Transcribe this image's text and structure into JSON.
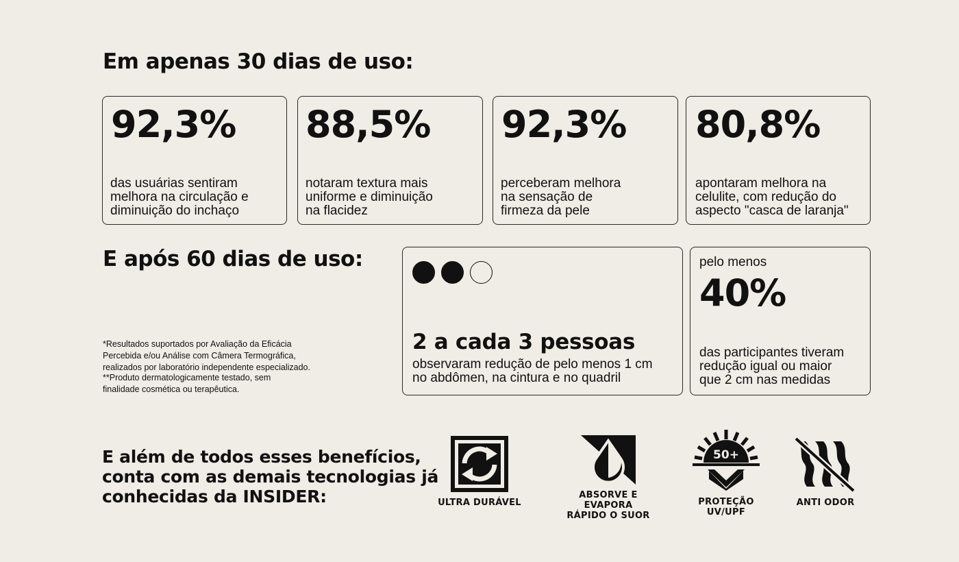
{
  "section30": {
    "heading": "Em apenas 30 dias de uso:",
    "cards": [
      {
        "value": "92,3%",
        "text": "das usuárias sentiram\nmelhora na circulação e\ndiminuição do inchaço"
      },
      {
        "value": "88,5%",
        "text": "notaram textura mais\nuniforme e diminuição\nna flacidez"
      },
      {
        "value": "92,3%",
        "text": "perceberam melhora\nna sensação de\nfirmeza da pele"
      },
      {
        "value": "80,8%",
        "text": "apontaram melhora na\ncelulite, com redução do\naspecto \"casca de laranja\""
      }
    ]
  },
  "section60": {
    "heading": "E após 60 dias de uso:",
    "footnote1": "*Resultados suportados por Avaliação da Eficácia\nPercebida e/ou Análise com Câmera Termográfica,\nrealizados por laboratório independente especializado.",
    "footnote2": "**Produto dermatologicamente testado, sem\nfinalidade cosmética ou terapêutica.",
    "people_card": {
      "dots_filled": 2,
      "dots_total": 3,
      "headline": "2 a cada 3 pessoas",
      "text": "observaram redução de pelo menos 1 cm\nno abdômen, na cintura e no quadril"
    },
    "percent_card": {
      "prefix": "pelo menos",
      "value": "40%",
      "text": "das participantes tiveram\nredução igual ou maior\nque 2 cm nas medidas"
    }
  },
  "tech": {
    "heading": "E além de todos esses benefícios,\nconta com as demais tecnologias já\nconhecidas da INSIDER:",
    "icons": [
      {
        "icon": "recycle-arrows-icon",
        "label": "ULTRA DURÁVEL"
      },
      {
        "icon": "drop-absorb-icon",
        "label": "ABSORVE E EVAPORA\nRÁPIDO O SUOR"
      },
      {
        "icon": "sun-shield-icon",
        "badge": "50+",
        "label": "PROTEÇÃO\nUV/UPF"
      },
      {
        "icon": "no-odor-icon",
        "label": "ANTI ODOR"
      }
    ]
  },
  "colors": {
    "background": "#f0ece6",
    "ink": "#111111"
  }
}
